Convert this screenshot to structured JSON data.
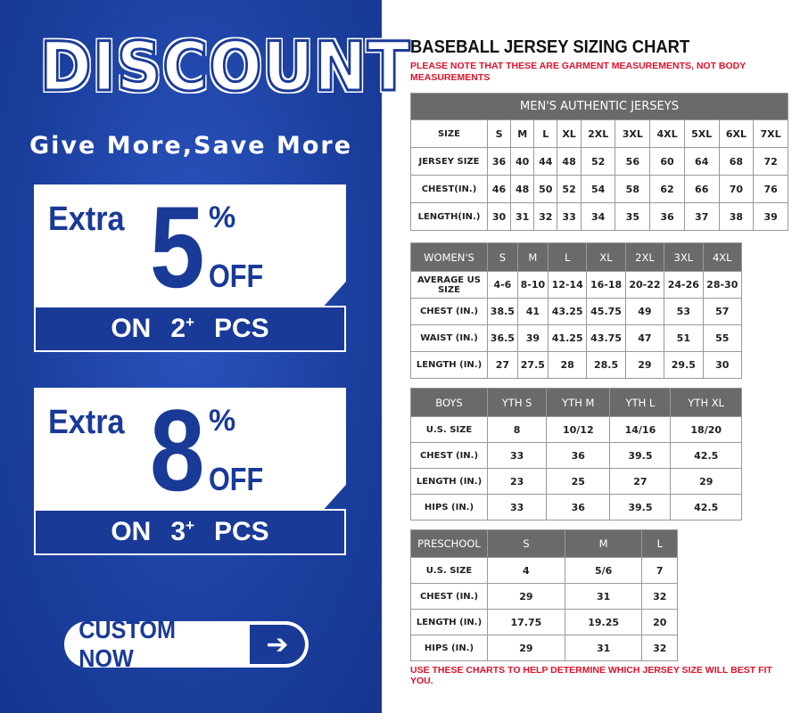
{
  "promo": {
    "title": "DISCOUNT",
    "tagline": "Give More,Save More",
    "offers": [
      {
        "extra": "Extra",
        "amount": "5",
        "percent": "%",
        "off": "OFF",
        "on": "ON",
        "qty": "2",
        "plus": "+",
        "pcs": "PCS"
      },
      {
        "extra": "Extra",
        "amount": "8",
        "percent": "%",
        "off": "OFF",
        "on": "ON",
        "qty": "3",
        "plus": "+",
        "pcs": "PCS"
      }
    ],
    "button": {
      "label": "CUSTOM NOW",
      "icon": "arrow-right-icon"
    },
    "colors": {
      "brand": "#1a3a98"
    }
  },
  "chart": {
    "title": "BASEBALL JERSEY SIZING CHART",
    "note": "PLEASE NOTE THAT THESE ARE GARMENT MEASUREMENTS, NOT BODY MEASUREMENTS",
    "footer": "USE THESE CHARTS TO HELP DETERMINE WHICH JERSEY SIZE WILL BEST FIT YOU.",
    "mens": {
      "title": "MEN'S AUTHENTIC JERSEYS",
      "rows": [
        [
          "SIZE",
          "S",
          "M",
          "L",
          "XL",
          "2XL",
          "3XL",
          "4XL",
          "5XL",
          "6XL",
          "7XL"
        ],
        [
          "JERSEY SIZE",
          "36",
          "40",
          "44",
          "48",
          "52",
          "56",
          "60",
          "64",
          "68",
          "72"
        ],
        [
          "CHEST(IN.)",
          "46",
          "48",
          "50",
          "52",
          "54",
          "58",
          "62",
          "66",
          "70",
          "76"
        ],
        [
          "LENGTH(IN.)",
          "30",
          "31",
          "32",
          "33",
          "34",
          "35",
          "36",
          "37",
          "38",
          "39"
        ]
      ]
    },
    "womens": {
      "header": [
        "WOMEN'S",
        "S",
        "M",
        "L",
        "XL",
        "2XL",
        "3XL",
        "4XL"
      ],
      "rows": [
        [
          "AVERAGE US SIZE",
          "4-6",
          "8-10",
          "12-14",
          "16-18",
          "20-22",
          "24-26",
          "28-30"
        ],
        [
          "CHEST (IN.)",
          "38.5",
          "41",
          "43.25",
          "45.75",
          "49",
          "53",
          "57"
        ],
        [
          "WAIST (IN.)",
          "36.5",
          "39",
          "41.25",
          "43.75",
          "47",
          "51",
          "55"
        ],
        [
          "LENGTH (IN.)",
          "27",
          "27.5",
          "28",
          "28.5",
          "29",
          "29.5",
          "30"
        ]
      ]
    },
    "boys": {
      "header": [
        "BOYS",
        "YTH S",
        "YTH M",
        "YTH L",
        "YTH XL"
      ],
      "rows": [
        [
          "U.S. SIZE",
          "8",
          "10/12",
          "14/16",
          "18/20"
        ],
        [
          "CHEST (IN.)",
          "33",
          "36",
          "39.5",
          "42.5"
        ],
        [
          "LENGTH (IN.)",
          "23",
          "25",
          "27",
          "29"
        ],
        [
          "HIPS (IN.)",
          "33",
          "36",
          "39.5",
          "42.5"
        ]
      ]
    },
    "preschool": {
      "header": [
        "PRESCHOOL",
        "S",
        "M",
        "L"
      ],
      "rows": [
        [
          "U.S. SIZE",
          "4",
          "5/6",
          "7"
        ],
        [
          "CHEST (IN.)",
          "29",
          "31",
          "32"
        ],
        [
          "LENGTH (IN.)",
          "17.75",
          "19.25",
          "20"
        ],
        [
          "HIPS (IN.)",
          "29",
          "31",
          "32"
        ]
      ]
    }
  }
}
